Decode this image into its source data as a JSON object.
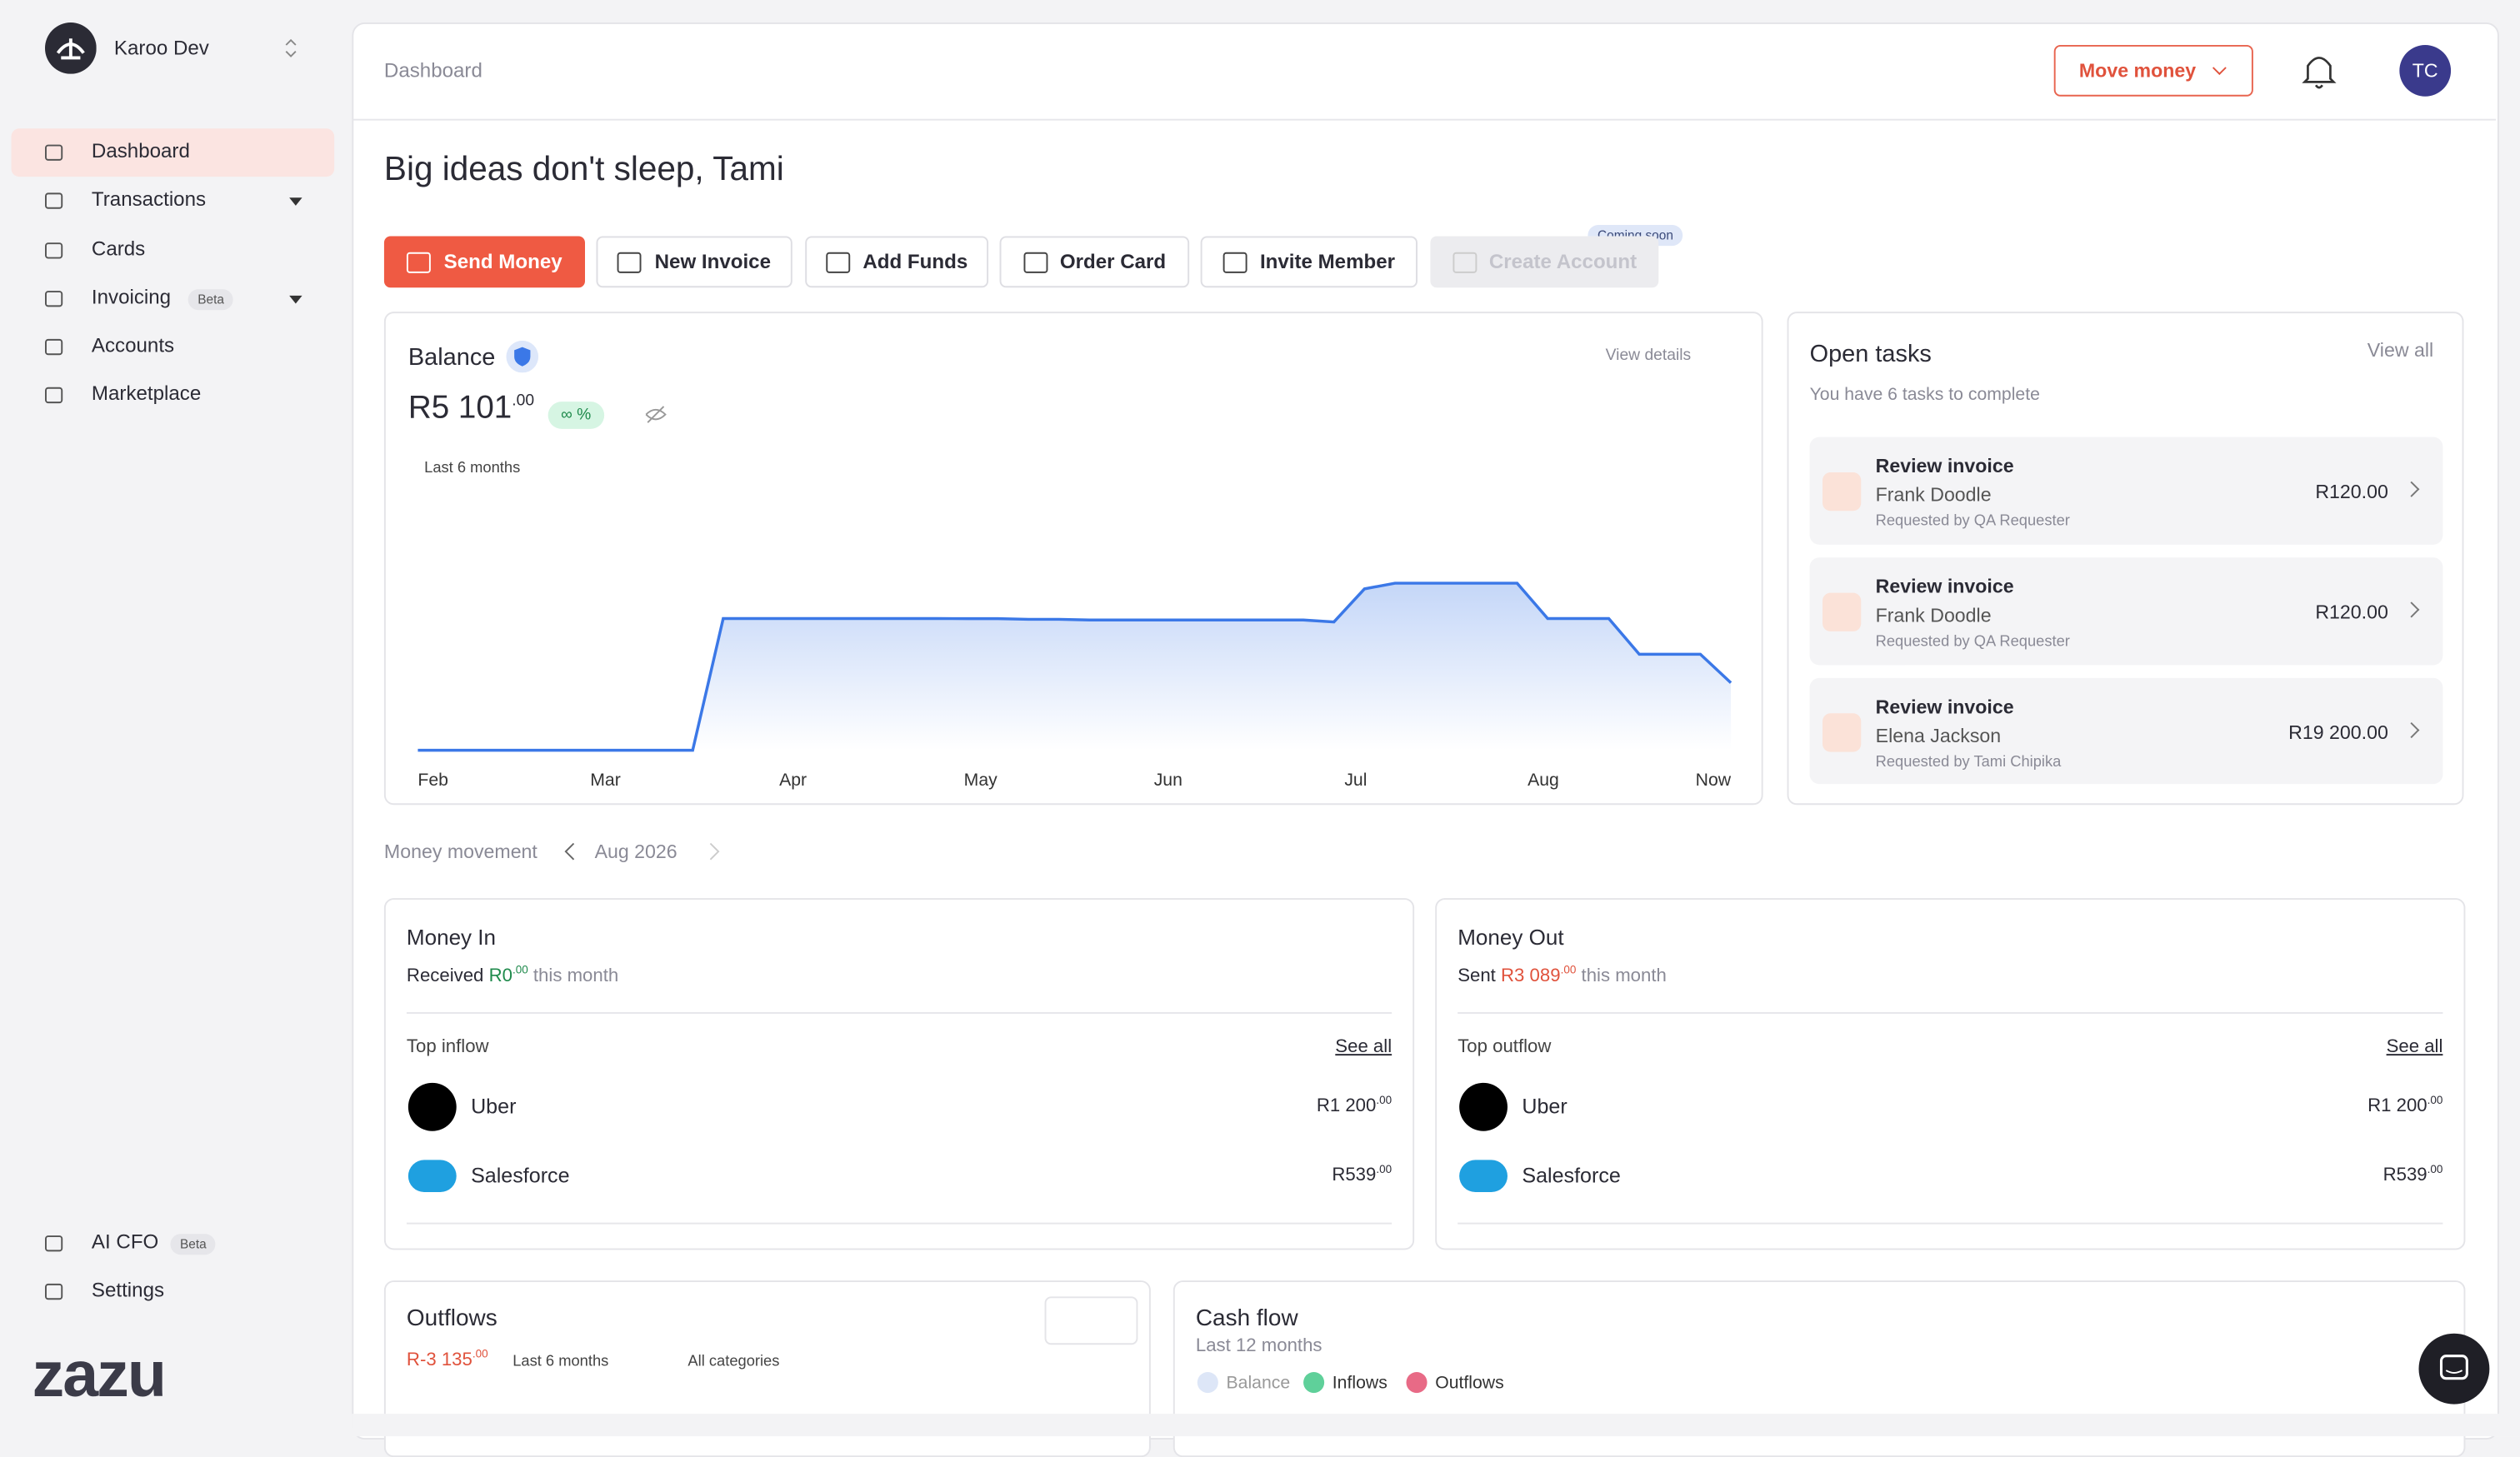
{
  "sidebar": {
    "org": "Karoo Dev",
    "nav": [
      {
        "label": "Dashboard"
      },
      {
        "label": "Transactions"
      },
      {
        "label": "Cards"
      },
      {
        "label": "Invoicing",
        "badge": "Beta"
      },
      {
        "label": "Accounts"
      },
      {
        "label": "Marketplace"
      }
    ],
    "bottom": [
      {
        "label": "AI CFO",
        "badge": "Beta"
      },
      {
        "label": "Settings"
      }
    ],
    "logo": "zazu"
  },
  "header": {
    "breadcrumb": "Dashboard",
    "move_money": "Move money",
    "avatar": "TC"
  },
  "greeting": "Big ideas don't sleep, Tami",
  "actions": [
    "Send Money",
    "New Invoice",
    "Add Funds",
    "Order Card",
    "Invite Member",
    "Create Account"
  ],
  "coming_soon": "Coming soon",
  "balance": {
    "title": "Balance",
    "amount": "R5 101",
    "cents": ".00",
    "change": "∞ %",
    "view_details": "View details",
    "period": "Last 6 months",
    "months": [
      "Feb",
      "Mar",
      "Apr",
      "May",
      "Jun",
      "Jul",
      "Aug",
      "Now"
    ],
    "values": [
      0,
      0,
      0,
      0,
      0,
      0,
      0,
      0,
      0,
      0,
      9960,
      9960,
      9960,
      9960,
      9960,
      9960,
      9960,
      9960,
      9950,
      9950,
      9900,
      9900,
      9850,
      9850,
      9850,
      9850,
      9850,
      9850,
      9850,
      9850,
      9700,
      12200,
      12630,
      12630,
      12630,
      12630,
      12630,
      9960,
      9960,
      9960,
      7260,
      7260,
      7260,
      5101
    ]
  },
  "tasks": {
    "title": "Open tasks",
    "view_all": "View all",
    "subtitle": "You have 6 tasks to complete",
    "items": [
      {
        "title": "Review invoice",
        "name": "Frank Doodle",
        "requested": "Requested by QA Requester",
        "amount": "R120.00"
      },
      {
        "title": "Review invoice",
        "name": "Frank Doodle",
        "requested": "Requested by QA Requester",
        "amount": "R120.00"
      },
      {
        "title": "Review invoice",
        "name": "Elena Jackson",
        "requested": "Requested by Tami Chipika",
        "amount": "R19 200.00"
      }
    ]
  },
  "money_movement": {
    "label": "Money movement",
    "month": "Aug 2026"
  },
  "money_in": {
    "title": "Money In",
    "prefix": "Received",
    "amount": "R0",
    "cents": ".00",
    "suffix": "this month",
    "top": "Top inflow",
    "see_all": "See all",
    "items": [
      {
        "name": "Uber",
        "amount": "R1 200",
        "cents": ".00"
      },
      {
        "name": "Salesforce",
        "amount": "R539",
        "cents": ".00"
      }
    ]
  },
  "money_out": {
    "title": "Money Out",
    "prefix": "Sent",
    "amount": "R3 089",
    "cents": ".00",
    "suffix": "this month",
    "top": "Top outflow",
    "see_all": "See all",
    "items": [
      {
        "name": "Uber",
        "amount": "R1 200",
        "cents": ".00"
      },
      {
        "name": "Salesforce",
        "amount": "R539",
        "cents": ".00"
      }
    ]
  },
  "outflows": {
    "title": "Outflows",
    "amount": "R-3 135",
    "cents": ".00",
    "period": "Last 6 months",
    "categories": "All categories"
  },
  "cash_flow": {
    "title": "Cash flow",
    "subtitle": "Last 12 months",
    "legend": [
      "Balance",
      "Inflows",
      "Outflows"
    ]
  }
}
